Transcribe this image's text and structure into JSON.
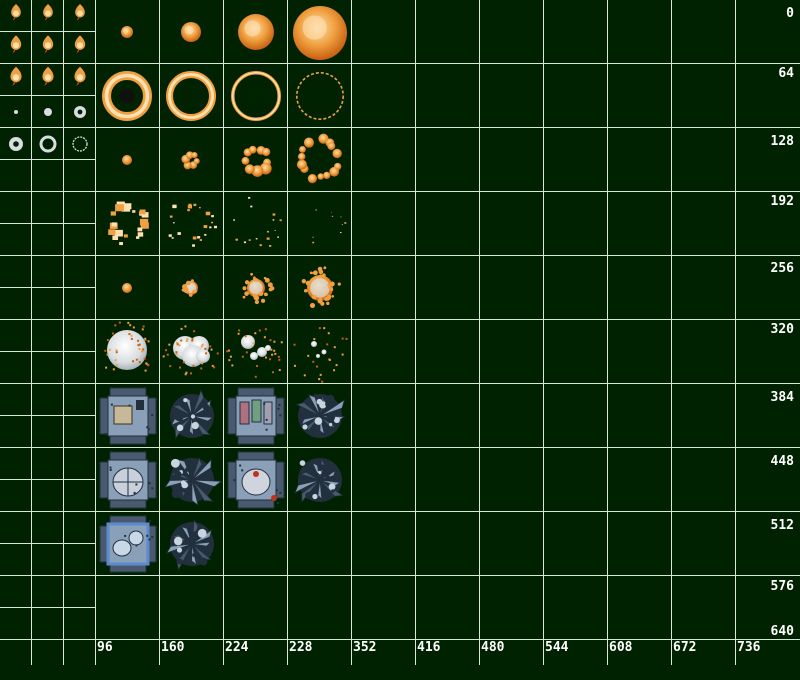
{
  "colors": {
    "background": "#002200",
    "grid": "#d8e8d8",
    "label": "#ffffff",
    "fire_light": "#ffe0b0",
    "fire_mid": "#f0a040",
    "fire_dark": "#c86010",
    "smoke": "#d8dde0",
    "building_base": "#4a5a6e",
    "building_light": "#8aa0b8",
    "building_dark": "#22303e",
    "building_blue": "#5a8ad0"
  },
  "row_labels": [
    "0",
    "64",
    "128",
    "192",
    "256",
    "320",
    "384",
    "448",
    "512",
    "576",
    "640"
  ],
  "col_labels": [
    "96",
    "160",
    "224",
    "228",
    "352",
    "416",
    "480",
    "544",
    "608",
    "672",
    "736"
  ],
  "sprites": {
    "small_flames": "flame-icon",
    "small_rings": "shockwave-ring-icon",
    "fireball": "fireball-icon",
    "ring": "fire-ring-icon",
    "debris_burst": "burst-icon",
    "smoke_cloud": "smoke-icon",
    "building": "building-icon",
    "ruin": "building-ruin-icon"
  }
}
